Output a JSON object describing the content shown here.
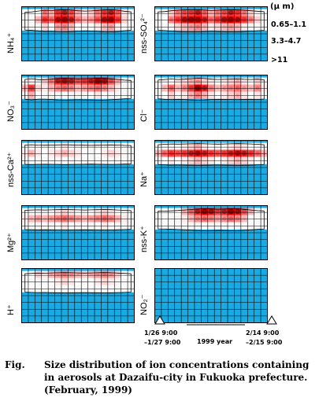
{
  "chart_data": {
    "type": "heatmap",
    "panels": [
      {
        "name": "NH4+",
        "label": "NH₄⁺",
        "col": 0,
        "row": 0,
        "intensity": [
          [
            0.1,
            0.25,
            0.45,
            0.7,
            0.6,
            0.85,
            0.9,
            0.8,
            0.6,
            0.5,
            0.55,
            0.7,
            0.85,
            0.9,
            0.75,
            0.5,
            0.3
          ],
          [
            0.2,
            0.35,
            0.6,
            0.85,
            0.75,
            0.95,
            1.0,
            0.9,
            0.7,
            0.6,
            0.65,
            0.8,
            0.95,
            1.0,
            0.85,
            0.55,
            0.35
          ],
          [
            0.1,
            0.2,
            0.35,
            0.55,
            0.45,
            0.65,
            0.7,
            0.6,
            0.45,
            0.4,
            0.45,
            0.5,
            0.6,
            0.65,
            0.5,
            0.3,
            0.2
          ]
        ]
      },
      {
        "name": "nss-SO4 2-",
        "label": "nss-SO₄²⁻",
        "col": 1,
        "row": 0,
        "intensity": [
          [
            0.2,
            0.3,
            0.55,
            0.7,
            0.8,
            0.85,
            0.9,
            0.75,
            0.6,
            0.7,
            0.8,
            0.9,
            0.85,
            0.7,
            0.55,
            0.4,
            0.3
          ],
          [
            0.35,
            0.45,
            0.7,
            0.85,
            0.95,
            1.0,
            1.0,
            0.9,
            0.75,
            0.85,
            0.95,
            1.0,
            0.95,
            0.85,
            0.7,
            0.55,
            0.4
          ],
          [
            0.2,
            0.3,
            0.4,
            0.55,
            0.6,
            0.65,
            0.7,
            0.6,
            0.5,
            0.55,
            0.6,
            0.65,
            0.6,
            0.5,
            0.4,
            0.3,
            0.2
          ]
        ]
      },
      {
        "name": "NO3-",
        "label": "NO₃⁻",
        "col": 0,
        "row": 1,
        "intensity": [
          [
            0.3,
            0.5,
            0.4,
            0.55,
            0.7,
            0.9,
            0.95,
            0.9,
            0.8,
            0.85,
            0.9,
            1.0,
            0.95,
            0.8,
            0.6,
            0.4,
            0.3
          ],
          [
            0.6,
            0.85,
            0.55,
            0.5,
            0.6,
            0.7,
            0.75,
            0.7,
            0.6,
            0.65,
            0.7,
            0.75,
            0.7,
            0.6,
            0.5,
            0.4,
            0.3
          ],
          [
            0.4,
            0.6,
            0.45,
            0.3,
            0.35,
            0.4,
            0.45,
            0.4,
            0.35,
            0.4,
            0.45,
            0.5,
            0.45,
            0.4,
            0.35,
            0.3,
            0.25
          ]
        ]
      },
      {
        "name": "Cl-",
        "label": "Cl⁻",
        "col": 1,
        "row": 1,
        "intensity": [
          [
            0.3,
            0.4,
            0.45,
            0.5,
            0.55,
            0.6,
            0.65,
            0.55,
            0.5,
            0.45,
            0.5,
            0.55,
            0.6,
            0.5,
            0.45,
            0.55,
            0.4
          ],
          [
            0.4,
            0.6,
            0.75,
            0.6,
            0.7,
            0.85,
            1.0,
            0.9,
            0.7,
            0.6,
            0.65,
            0.7,
            0.75,
            0.65,
            0.6,
            0.7,
            0.5
          ],
          [
            0.3,
            0.45,
            0.55,
            0.4,
            0.5,
            0.6,
            0.7,
            0.6,
            0.5,
            0.45,
            0.5,
            0.55,
            0.6,
            0.5,
            0.45,
            0.5,
            0.35
          ]
        ]
      },
      {
        "name": "nss-Ca2+",
        "label": "nss-Ca²⁺",
        "col": 0,
        "row": 2,
        "intensity": [
          [
            0.2,
            0.25,
            0.3,
            0.35,
            0.4,
            0.45,
            0.5,
            0.45,
            0.4,
            0.35,
            0.3,
            0.35,
            0.4,
            0.45,
            0.4,
            0.3,
            0.25
          ],
          [
            0.5,
            0.6,
            0.5,
            0.45,
            0.5,
            0.55,
            0.6,
            0.55,
            0.5,
            0.45,
            0.4,
            0.45,
            0.5,
            0.55,
            0.5,
            0.4,
            0.35
          ],
          [
            0.3,
            0.35,
            0.3,
            0.3,
            0.35,
            0.4,
            0.45,
            0.4,
            0.35,
            0.3,
            0.3,
            0.35,
            0.4,
            0.4,
            0.35,
            0.3,
            0.25
          ]
        ]
      },
      {
        "name": "Na+",
        "label": "Na⁺",
        "col": 1,
        "row": 2,
        "intensity": [
          [
            0.3,
            0.35,
            0.4,
            0.45,
            0.5,
            0.55,
            0.6,
            0.5,
            0.45,
            0.4,
            0.45,
            0.5,
            0.55,
            0.5,
            0.45,
            0.4,
            0.35
          ],
          [
            0.6,
            0.75,
            0.85,
            0.8,
            0.85,
            0.9,
            0.95,
            0.9,
            0.85,
            0.8,
            0.85,
            0.9,
            0.95,
            0.9,
            0.85,
            0.75,
            0.6
          ],
          [
            0.35,
            0.45,
            0.5,
            0.45,
            0.5,
            0.55,
            0.6,
            0.55,
            0.5,
            0.45,
            0.5,
            0.55,
            0.6,
            0.55,
            0.5,
            0.45,
            0.35
          ]
        ]
      },
      {
        "name": "Mg2+",
        "label": "Mg²⁺",
        "col": 0,
        "row": 3,
        "intensity": [
          [
            0.25,
            0.3,
            0.35,
            0.4,
            0.45,
            0.5,
            0.55,
            0.5,
            0.45,
            0.4,
            0.45,
            0.5,
            0.55,
            0.5,
            0.45,
            0.4,
            0.3
          ],
          [
            0.5,
            0.6,
            0.65,
            0.6,
            0.65,
            0.7,
            0.75,
            0.7,
            0.65,
            0.6,
            0.65,
            0.7,
            0.75,
            0.7,
            0.6,
            0.5,
            0.4
          ],
          [
            0.3,
            0.35,
            0.4,
            0.35,
            0.4,
            0.45,
            0.5,
            0.45,
            0.4,
            0.35,
            0.4,
            0.45,
            0.5,
            0.45,
            0.4,
            0.35,
            0.3
          ]
        ]
      },
      {
        "name": "nss-K+",
        "label": "nss-K⁺",
        "col": 1,
        "row": 3,
        "intensity": [
          [
            0.2,
            0.25,
            0.35,
            0.45,
            0.6,
            0.75,
            0.9,
            1.0,
            0.95,
            0.85,
            0.9,
            1.0,
            0.95,
            0.8,
            0.6,
            0.4,
            0.3
          ],
          [
            0.15,
            0.2,
            0.3,
            0.4,
            0.5,
            0.6,
            0.7,
            0.75,
            0.7,
            0.65,
            0.7,
            0.75,
            0.7,
            0.6,
            0.45,
            0.3,
            0.2
          ],
          [
            0.1,
            0.15,
            0.2,
            0.25,
            0.3,
            0.35,
            0.4,
            0.45,
            0.4,
            0.35,
            0.4,
            0.45,
            0.4,
            0.35,
            0.25,
            0.2,
            0.15
          ]
        ]
      },
      {
        "name": "H+",
        "label": "H⁺",
        "col": 0,
        "row": 4,
        "intensity": [
          [
            0.35,
            0.45,
            0.55,
            0.5,
            0.6,
            0.65,
            0.7,
            0.65,
            0.6,
            0.55,
            0.6,
            0.65,
            0.7,
            0.65,
            0.55,
            0.45,
            0.35
          ],
          [
            0.25,
            0.3,
            0.4,
            0.35,
            0.45,
            0.5,
            0.55,
            0.5,
            0.45,
            0.4,
            0.45,
            0.5,
            0.55,
            0.5,
            0.4,
            0.3,
            0.25
          ],
          [
            0.1,
            0.15,
            0.2,
            0.15,
            0.2,
            0.25,
            0.3,
            0.25,
            0.2,
            0.15,
            0.2,
            0.25,
            0.3,
            0.25,
            0.2,
            0.15,
            0.1
          ]
        ]
      },
      {
        "name": "NO2-",
        "label": "NO₂⁻",
        "col": 1,
        "row": 4,
        "intensity": [
          [
            0,
            0,
            0,
            0,
            0,
            0,
            0,
            0,
            0,
            0,
            0,
            0,
            0,
            0,
            0,
            0,
            0
          ],
          [
            0,
            0,
            0,
            0,
            0,
            0,
            0,
            0,
            0,
            0,
            0,
            0,
            0,
            0,
            0,
            0,
            0
          ],
          [
            0,
            0,
            0,
            0,
            0,
            0,
            0,
            0,
            0,
            0,
            0,
            0,
            0,
            0,
            0,
            0,
            0
          ]
        ]
      }
    ],
    "size_axis_title": "(μ m)",
    "size_labels": [
      "0.65–1.1",
      "3.3–4.7",
      ">11"
    ],
    "time_axis": {
      "start_label_1": "1/26  9:00",
      "start_label_2": "–1/27 9:00",
      "middle_label": "1999 year",
      "end_label_1": "2/14  9:00",
      "end_label_2": "–2/15 9:00"
    },
    "colors": {
      "background": "#1aa9e0",
      "grid": "#000000",
      "low": "#ffffff",
      "high": "#ff0000"
    }
  },
  "caption": {
    "fig": "Fig.",
    "line1": "Size distribution of ion concentrations containing",
    "line2": "in aerosols at Dazaifu-city in Fukuoka prefecture.",
    "line3": "(February, 1999)"
  }
}
